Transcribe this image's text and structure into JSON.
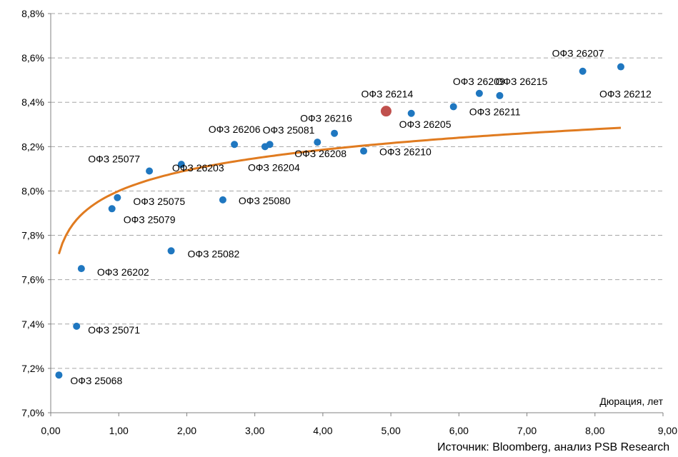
{
  "chart_data": {
    "type": "scatter",
    "xlabel": "Дюрация, лет",
    "ylabel": "",
    "xlim": [
      0,
      9
    ],
    "ylim": [
      7.0,
      8.8
    ],
    "x_ticks": [
      "0,00",
      "1,00",
      "2,00",
      "3,00",
      "4,00",
      "5,00",
      "6,00",
      "7,00",
      "8,00",
      "9,00"
    ],
    "y_ticks": [
      "7,0%",
      "7,2%",
      "7,4%",
      "7,6%",
      "7,8%",
      "8,0%",
      "8,2%",
      "8,4%",
      "8,6%",
      "8,8%"
    ],
    "grid": "horizontal dashed",
    "point_color": "#1f77c0",
    "highlight_color": "#c0504d",
    "trend_color": "#e07b20",
    "points": [
      {
        "label": "ОФЗ 25068",
        "x": 0.12,
        "y": 7.17
      },
      {
        "label": "ОФЗ 25071",
        "x": 0.38,
        "y": 7.39
      },
      {
        "label": "ОФЗ 26202",
        "x": 0.45,
        "y": 7.65
      },
      {
        "label": "ОФЗ 25079",
        "x": 0.9,
        "y": 7.92
      },
      {
        "label": "ОФЗ 25075",
        "x": 0.98,
        "y": 7.97
      },
      {
        "label": "ОФЗ 25077",
        "x": 1.45,
        "y": 8.09
      },
      {
        "label": "ОФЗ 25082",
        "x": 1.77,
        "y": 7.73
      },
      {
        "label": "ОФЗ 26203",
        "x": 1.92,
        "y": 8.12
      },
      {
        "label": "ОФЗ 25080",
        "x": 2.53,
        "y": 7.96
      },
      {
        "label": "ОФЗ 26206",
        "x": 2.7,
        "y": 8.21
      },
      {
        "label": "ОФЗ 26204",
        "x": 3.15,
        "y": 8.2
      },
      {
        "label": "ОФЗ 25081",
        "x": 3.22,
        "y": 8.21
      },
      {
        "label": "ОФЗ 26208",
        "x": 3.92,
        "y": 8.22
      },
      {
        "label": "ОФЗ 26216",
        "x": 4.17,
        "y": 8.26
      },
      {
        "label": "ОФЗ 26210",
        "x": 4.6,
        "y": 8.18
      },
      {
        "label": "ОФЗ 26214",
        "x": 4.93,
        "y": 8.36,
        "highlight": true
      },
      {
        "label": "ОФЗ 26205",
        "x": 5.3,
        "y": 8.35
      },
      {
        "label": "ОФЗ 26211",
        "x": 5.92,
        "y": 8.38
      },
      {
        "label": "ОФЗ 26209",
        "x": 6.3,
        "y": 8.44
      },
      {
        "label": "ОФЗ 26215",
        "x": 6.6,
        "y": 8.43
      },
      {
        "label": "ОФЗ 26207",
        "x": 7.82,
        "y": 8.54
      },
      {
        "label": "ОФЗ 26212",
        "x": 8.38,
        "y": 8.56
      }
    ],
    "trendline": {
      "type": "logarithmic",
      "a": 8.0,
      "b": 0.134,
      "x_from": 0.12,
      "x_to": 8.38
    }
  },
  "source": "Источник: Bloomberg, анализ PSB Research"
}
